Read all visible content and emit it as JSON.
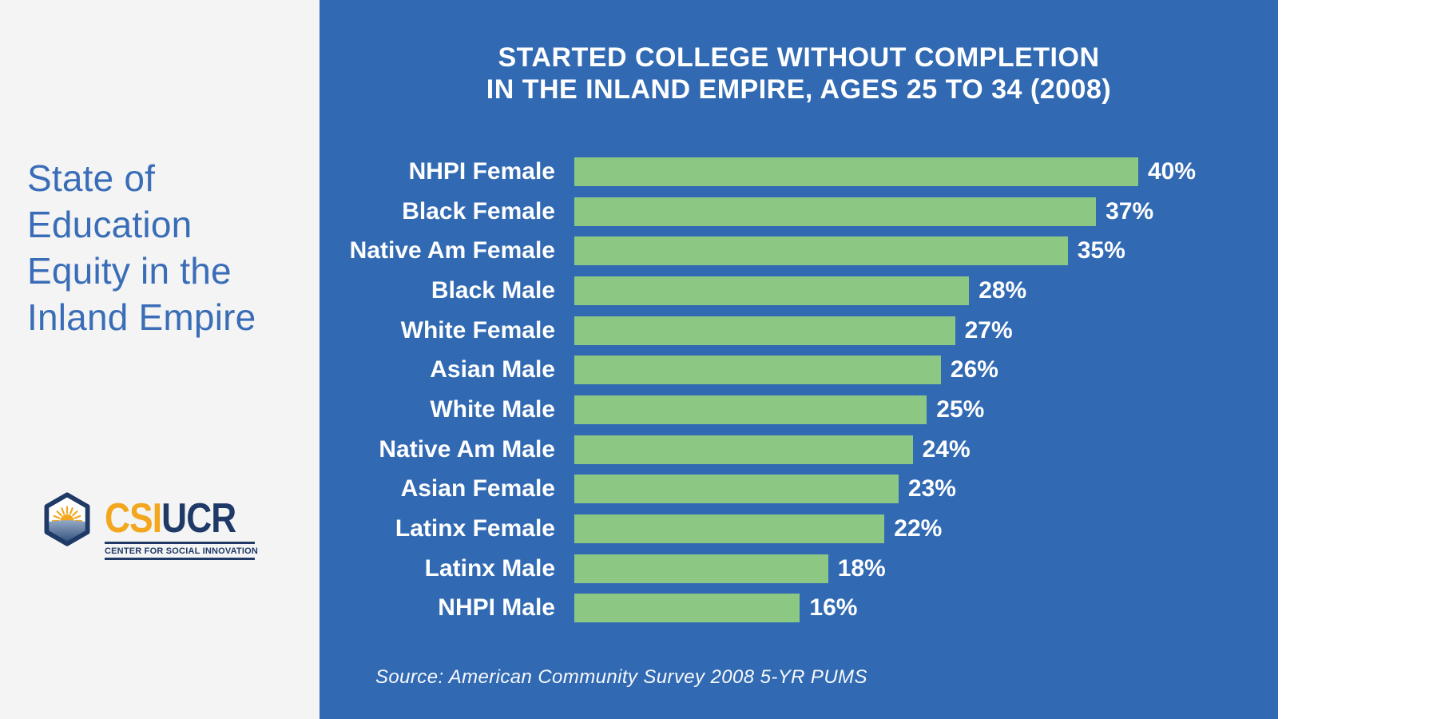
{
  "left_panel": {
    "title_lines": [
      "State of",
      "Education",
      "Equity in the",
      "Inland Empire"
    ],
    "logo": {
      "csi": "CSI",
      "ucr": "UCR",
      "subtitle": "CENTER FOR SOCIAL INNOVATION"
    }
  },
  "chart_data": {
    "type": "bar",
    "orientation": "horizontal",
    "title": "STARTED COLLEGE WITHOUT COMPLETION IN THE INLAND EMPIRE, AGES 25 TO 34 (2008)",
    "title_lines": [
      "STARTED COLLEGE WITHOUT COMPLETION",
      "IN THE INLAND EMPIRE, AGES 25 TO 34 (2008)"
    ],
    "categories": [
      "NHPI Female",
      "Black Female",
      "Native Am Female",
      "Black Male",
      "White Female",
      "Asian Male",
      "White Male",
      "Native Am Male",
      "Asian Female",
      "Latinx Female",
      "Latinx Male",
      "NHPI Male"
    ],
    "values": [
      40,
      37,
      35,
      28,
      27,
      26,
      25,
      24,
      23,
      22,
      18,
      16
    ],
    "value_suffix": "%",
    "xlim": [
      0,
      40
    ],
    "grid": false,
    "legend": false,
    "source": "Source: American Community Survey 2008 5-YR PUMS"
  },
  "colors": {
    "panel_blue": "#316AB3",
    "bar_green": "#8CC884",
    "left_panel_bg": "#F4F4F4",
    "left_title_blue": "#3A6DB7",
    "logo_navy": "#1F3A66",
    "logo_gold": "#F2A71E",
    "text_white": "#FFFFFF"
  }
}
